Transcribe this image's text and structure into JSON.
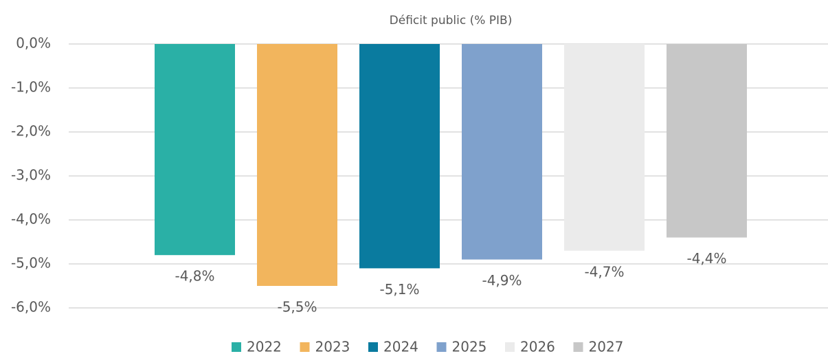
{
  "chart_data": {
    "type": "bar",
    "title": "Déficit public (% PIB)",
    "categories": [
      null
    ],
    "series": [
      {
        "name": "2022",
        "color": "#2ab0a6",
        "values": [
          -4.8
        ],
        "value_labels": [
          "-4,8%"
        ]
      },
      {
        "name": "2023",
        "color": "#f2b55d",
        "values": [
          -5.5
        ],
        "value_labels": [
          "-5,5%"
        ]
      },
      {
        "name": "2024",
        "color": "#0a7b9f",
        "values": [
          -5.1
        ],
        "value_labels": [
          "-5,1%"
        ]
      },
      {
        "name": "2025",
        "color": "#7fa1cc",
        "values": [
          -4.9
        ],
        "value_labels": [
          "-4,9%"
        ]
      },
      {
        "name": "2026",
        "color": "#ebebeb",
        "values": [
          -4.7
        ],
        "value_labels": [
          "-4,7%"
        ]
      },
      {
        "name": "2027",
        "color": "#c7c7c7",
        "values": [
          -4.4
        ],
        "value_labels": [
          "-4,4%"
        ]
      }
    ],
    "ylim": [
      -6,
      0
    ],
    "yticks": [
      {
        "value": 0,
        "label": "0,0%"
      },
      {
        "value": -1,
        "label": "-1,0%"
      },
      {
        "value": -2,
        "label": "-2,0%"
      },
      {
        "value": -3,
        "label": "-3,0%"
      },
      {
        "value": -4,
        "label": "-4,0%"
      },
      {
        "value": -5,
        "label": "-5,0%"
      },
      {
        "value": -6,
        "label": "-6,0%"
      }
    ],
    "grid": true,
    "legend": "bottom"
  }
}
